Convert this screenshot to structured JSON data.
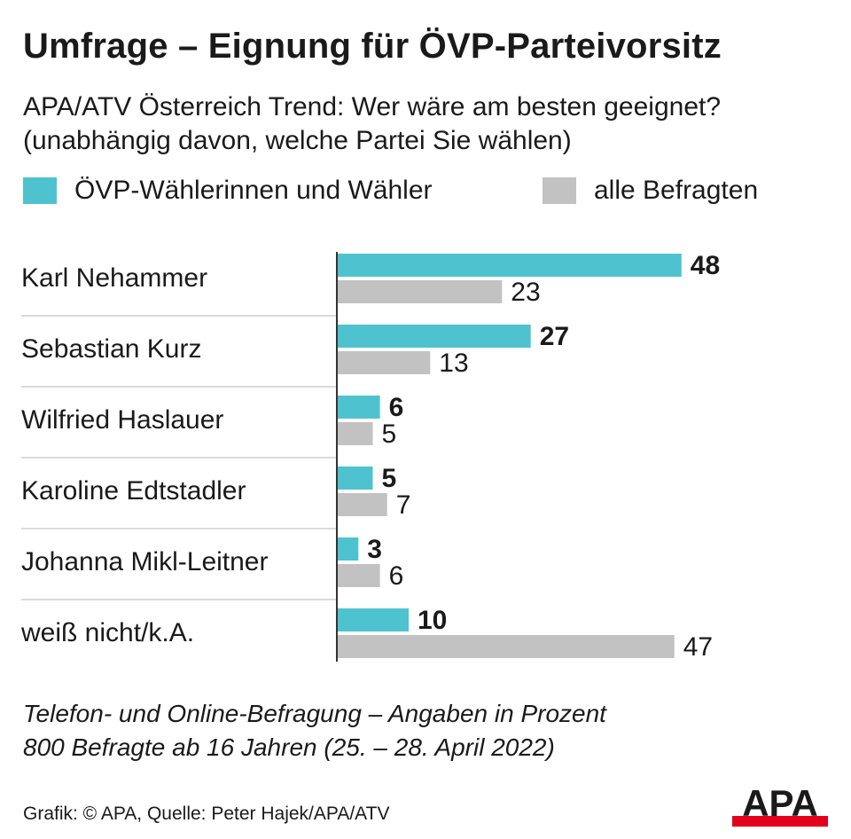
{
  "title": "Umfrage – Eignung für ÖVP-Parteivorsitz",
  "subtitle_line1": "APA/ATV Österreich Trend: Wer wäre am besten geeignet?",
  "subtitle_line2": "(unabhängig davon, welche Partei Sie wählen)",
  "legend": [
    {
      "label": "ÖVP-Wählerinnen und Wähler",
      "color": "#4ec3cf"
    },
    {
      "label": "alle Befragten",
      "color": "#c2c2c2"
    }
  ],
  "chart_data": {
    "type": "bar",
    "orientation": "horizontal",
    "categories": [
      "Karl Nehammer",
      "Sebastian Kurz",
      "Wilfried Haslauer",
      "Karoline Edtstadler",
      "Johanna Mikl-Leitner",
      "weiß nicht/k.A."
    ],
    "series": [
      {
        "name": "ÖVP-Wählerinnen und Wähler",
        "values": [
          48,
          27,
          6,
          5,
          3,
          10
        ],
        "color": "#4ec3cf",
        "label_bold": true
      },
      {
        "name": "alle Befragten",
        "values": [
          23,
          13,
          5,
          7,
          6,
          47
        ],
        "color": "#c2c2c2",
        "label_bold": false
      }
    ],
    "unit": "Prozent",
    "xlim": [
      0,
      50
    ],
    "grid": false,
    "legend_position": "top-left"
  },
  "footnote_line1": "Telefon- und Online-Befragung – Angaben in Prozent",
  "footnote_line2": "800 Befragte ab 16 Jahren (25. – 28. April 2022)",
  "credit": "Grafik: © APA, Quelle: Peter Hajek/APA/ATV",
  "logo_text": "APA",
  "logo_color": "#e2001a"
}
